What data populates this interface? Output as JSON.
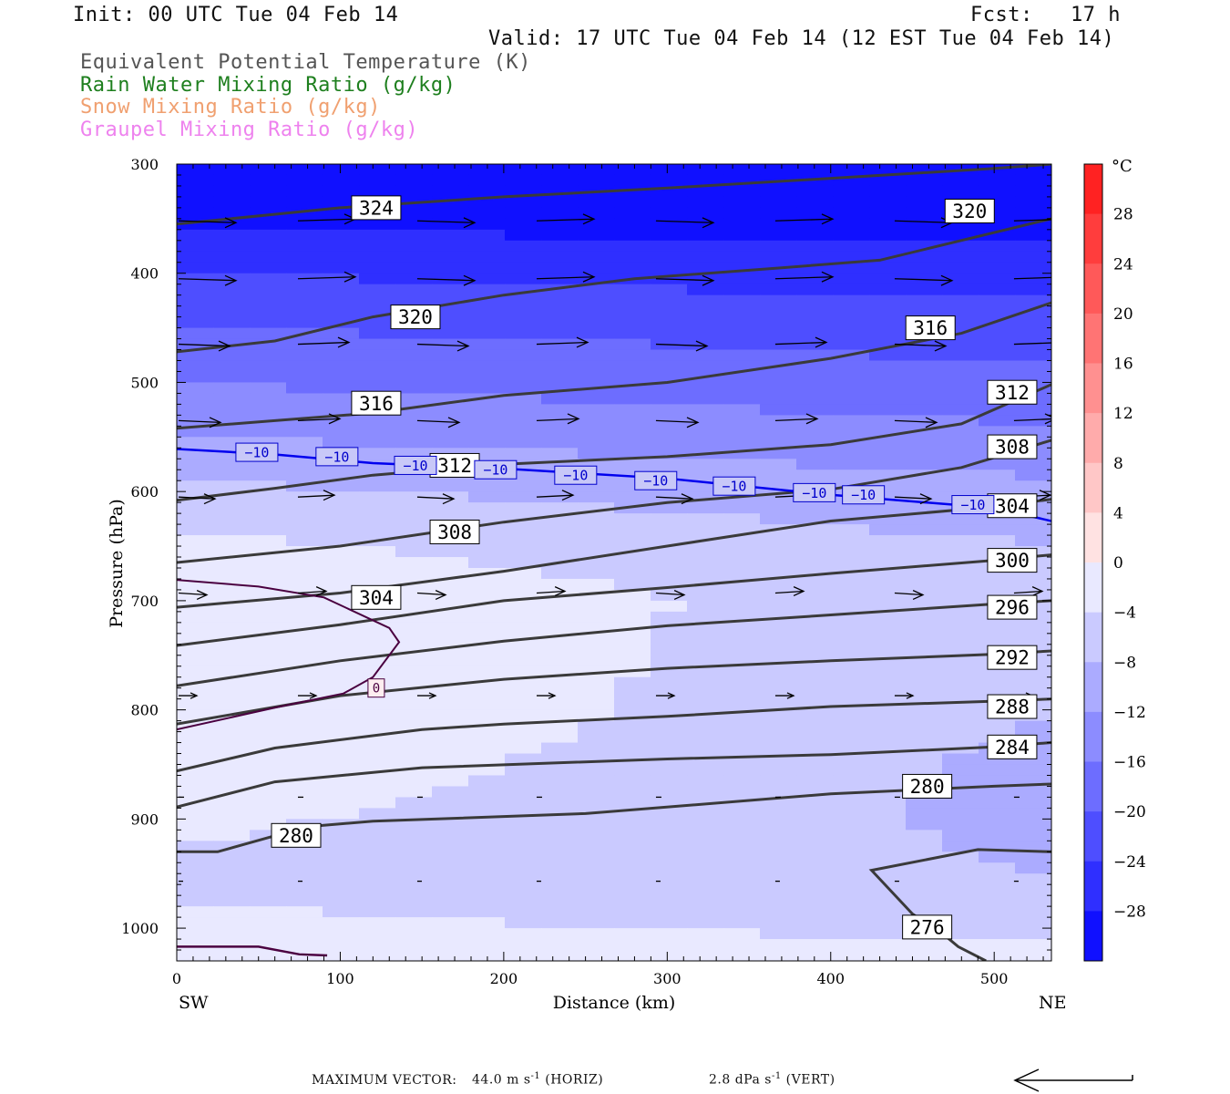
{
  "header": {
    "init": "Init: 00 UTC Tue 04 Feb 14",
    "fcst": "Fcst:   17 h",
    "valid": "Valid: 17 UTC Tue 04 Feb 14 (12 EST Tue 04 Feb 14)"
  },
  "fields": [
    {
      "label": "Equivalent Potential Temperature (K)",
      "color": "#555555"
    },
    {
      "label": "Rain Water Mixing Ratio (g/kg)",
      "color": "#1e7f1e"
    },
    {
      "label": "Snow Mixing Ratio (g/kg)",
      "color": "#f0a070"
    },
    {
      "label": "Graupel Mixing Ratio (g/kg)",
      "color": "#ee82ee"
    }
  ],
  "footer": {
    "max_vector_label": "MAXIMUM VECTOR:",
    "horiz": "44.0 m s",
    "horiz_exp": "-1",
    "horiz_tail": "(HORIZ)",
    "vert": "2.8 dPa s",
    "vert_exp": "-1",
    "vert_tail": "(VERT)"
  },
  "chart_data": {
    "type": "contour",
    "xlabel": "Distance (km)",
    "ylabel": "Pressure (hPa)",
    "xlim": [
      0,
      535
    ],
    "ylim": [
      1030,
      300
    ],
    "x_ticks": [
      "0",
      "100",
      "200",
      "300",
      "400",
      "500"
    ],
    "y_ticks": [
      "300",
      "400",
      "500",
      "600",
      "700",
      "800",
      "900",
      "1000"
    ],
    "x_left_label": "SW",
    "x_right_label": "NE",
    "colorbar": {
      "unit": "°C",
      "min": -32,
      "max": 32,
      "step": 4,
      "tick_labels": [
        "28",
        "24",
        "20",
        "16",
        "12",
        "8",
        "4",
        "0",
        "−4",
        "−8",
        "−12",
        "−16",
        "−20",
        "−24",
        "−28"
      ]
    },
    "theta_e_contours": [
      {
        "label": "324",
        "points": [
          [
            0,
            355
          ],
          [
            100,
            340
          ],
          [
            200,
            330
          ],
          [
            300,
            322
          ],
          [
            400,
            313
          ],
          [
            500,
            304
          ],
          [
            535,
            300
          ]
        ]
      },
      {
        "label": "320",
        "points": [
          [
            0,
            472
          ],
          [
            60,
            462
          ],
          [
            120,
            440
          ],
          [
            200,
            420
          ],
          [
            280,
            405
          ],
          [
            370,
            395
          ],
          [
            430,
            388
          ],
          [
            535,
            350
          ]
        ]
      },
      {
        "label": "316",
        "points": [
          [
            0,
            542
          ],
          [
            60,
            535
          ],
          [
            120,
            528
          ],
          [
            200,
            512
          ],
          [
            300,
            500
          ],
          [
            400,
            478
          ],
          [
            480,
            455
          ],
          [
            535,
            427
          ]
        ]
      },
      {
        "label": "312",
        "points": [
          [
            0,
            608
          ],
          [
            60,
            597
          ],
          [
            120,
            585
          ],
          [
            200,
            575
          ],
          [
            300,
            568
          ],
          [
            400,
            557
          ],
          [
            480,
            538
          ],
          [
            535,
            502
          ]
        ]
      },
      {
        "label": "308",
        "points": [
          [
            0,
            665
          ],
          [
            100,
            650
          ],
          [
            200,
            628
          ],
          [
            300,
            610
          ],
          [
            400,
            598
          ],
          [
            480,
            578
          ],
          [
            535,
            553
          ]
        ]
      },
      {
        "label": "304",
        "points": [
          [
            0,
            706
          ],
          [
            100,
            693
          ],
          [
            200,
            673
          ],
          [
            300,
            650
          ],
          [
            400,
            627
          ],
          [
            500,
            614
          ],
          [
            535,
            607
          ]
        ]
      },
      {
        "label": "300",
        "points": [
          [
            0,
            741
          ],
          [
            100,
            722
          ],
          [
            200,
            700
          ],
          [
            300,
            688
          ],
          [
            400,
            675
          ],
          [
            500,
            663
          ],
          [
            535,
            658
          ]
        ]
      },
      {
        "label": "296",
        "points": [
          [
            0,
            778
          ],
          [
            100,
            755
          ],
          [
            200,
            737
          ],
          [
            300,
            723
          ],
          [
            400,
            713
          ],
          [
            500,
            703
          ],
          [
            535,
            700
          ]
        ]
      },
      {
        "label": "292",
        "points": [
          [
            0,
            813
          ],
          [
            100,
            787
          ],
          [
            200,
            772
          ],
          [
            300,
            762
          ],
          [
            400,
            755
          ],
          [
            500,
            749
          ],
          [
            535,
            746
          ]
        ]
      },
      {
        "label": "288",
        "points": [
          [
            0,
            856
          ],
          [
            60,
            835
          ],
          [
            150,
            818
          ],
          [
            200,
            813
          ],
          [
            300,
            806
          ],
          [
            400,
            797
          ],
          [
            500,
            792
          ],
          [
            535,
            790
          ]
        ]
      },
      {
        "label": "284",
        "points": [
          [
            0,
            889
          ],
          [
            60,
            866
          ],
          [
            150,
            853
          ],
          [
            300,
            845
          ],
          [
            400,
            841
          ],
          [
            500,
            834
          ],
          [
            535,
            830
          ]
        ]
      },
      {
        "label": "280",
        "points": [
          [
            0,
            930
          ],
          [
            25,
            930
          ],
          [
            80,
            907
          ],
          [
            120,
            902
          ],
          [
            250,
            895
          ],
          [
            400,
            877
          ],
          [
            500,
            870
          ],
          [
            535,
            868
          ]
        ]
      },
      {
        "label": "276",
        "points": [
          [
            535,
            930
          ],
          [
            490,
            928
          ],
          [
            425,
            947
          ],
          [
            450,
            987
          ],
          [
            470,
            1007
          ],
          [
            478,
            1017
          ],
          [
            495,
            1030
          ]
        ]
      }
    ],
    "theta_e_labels": [
      {
        "text": "324",
        "x": 122,
        "p": 340
      },
      {
        "text": "320",
        "x": 485,
        "p": 343
      },
      {
        "text": "320",
        "x": 146,
        "p": 440
      },
      {
        "text": "316",
        "x": 461,
        "p": 450
      },
      {
        "text": "316",
        "x": 122,
        "p": 519
      },
      {
        "text": "312",
        "x": 511,
        "p": 509
      },
      {
        "text": "312",
        "x": 170,
        "p": 576
      },
      {
        "text": "308",
        "x": 511,
        "p": 559
      },
      {
        "text": "308",
        "x": 170,
        "p": 637
      },
      {
        "text": "304",
        "x": 511,
        "p": 613
      },
      {
        "text": "304",
        "x": 122,
        "p": 697
      },
      {
        "text": "300",
        "x": 511,
        "p": 663
      },
      {
        "text": "296",
        "x": 511,
        "p": 706
      },
      {
        "text": "292",
        "x": 511,
        "p": 752
      },
      {
        "text": "288",
        "x": 511,
        "p": 797
      },
      {
        "text": "284",
        "x": 511,
        "p": 834
      },
      {
        "text": "280",
        "x": 459,
        "p": 870
      },
      {
        "text": "280",
        "x": 73,
        "p": 915
      },
      {
        "text": "276",
        "x": 459,
        "p": 999
      }
    ],
    "isotherm_minus10": {
      "label": "−10",
      "points": [
        [
          0,
          561
        ],
        [
          60,
          566
        ],
        [
          120,
          574
        ],
        [
          200,
          579
        ],
        [
          300,
          588
        ],
        [
          400,
          603
        ],
        [
          500,
          615
        ],
        [
          535,
          627
        ]
      ],
      "labels": [
        [
          49,
          564
        ],
        [
          98,
          568
        ],
        [
          146,
          576
        ],
        [
          195,
          580
        ],
        [
          244,
          585
        ],
        [
          293,
          590
        ],
        [
          341,
          595
        ],
        [
          390,
          601
        ],
        [
          420,
          603
        ],
        [
          487,
          612
        ]
      ]
    },
    "isotherm_zero": {
      "label": "0",
      "points": [
        [
          0,
          681
        ],
        [
          50,
          687
        ],
        [
          90,
          697
        ],
        [
          130,
          725
        ],
        [
          136,
          738
        ],
        [
          120,
          770
        ],
        [
          102,
          785
        ],
        [
          60,
          798
        ],
        [
          0,
          818
        ]
      ],
      "points_lower": [
        [
          0,
          1017
        ],
        [
          50,
          1017
        ],
        [
          75,
          1024
        ],
        [
          92,
          1025
        ]
      ],
      "label_pos": [
        122,
        780
      ]
    },
    "temp_bands": [
      {
        "c": 3,
        "x": [
          0,
          130
        ],
        "p": [
          680,
          820
        ]
      }
    ],
    "wind_rows": [
      {
        "p": 352,
        "len": 63
      },
      {
        "p": 405,
        "len": 63
      },
      {
        "p": 465,
        "len": 56
      },
      {
        "p": 535,
        "len": 46
      },
      {
        "p": 605,
        "len": 40
      },
      {
        "p": 693,
        "len": 31
      },
      {
        "p": 787,
        "len": 20
      },
      {
        "p": 880,
        "len": 6
      },
      {
        "p": 957,
        "len": 5
      }
    ]
  }
}
